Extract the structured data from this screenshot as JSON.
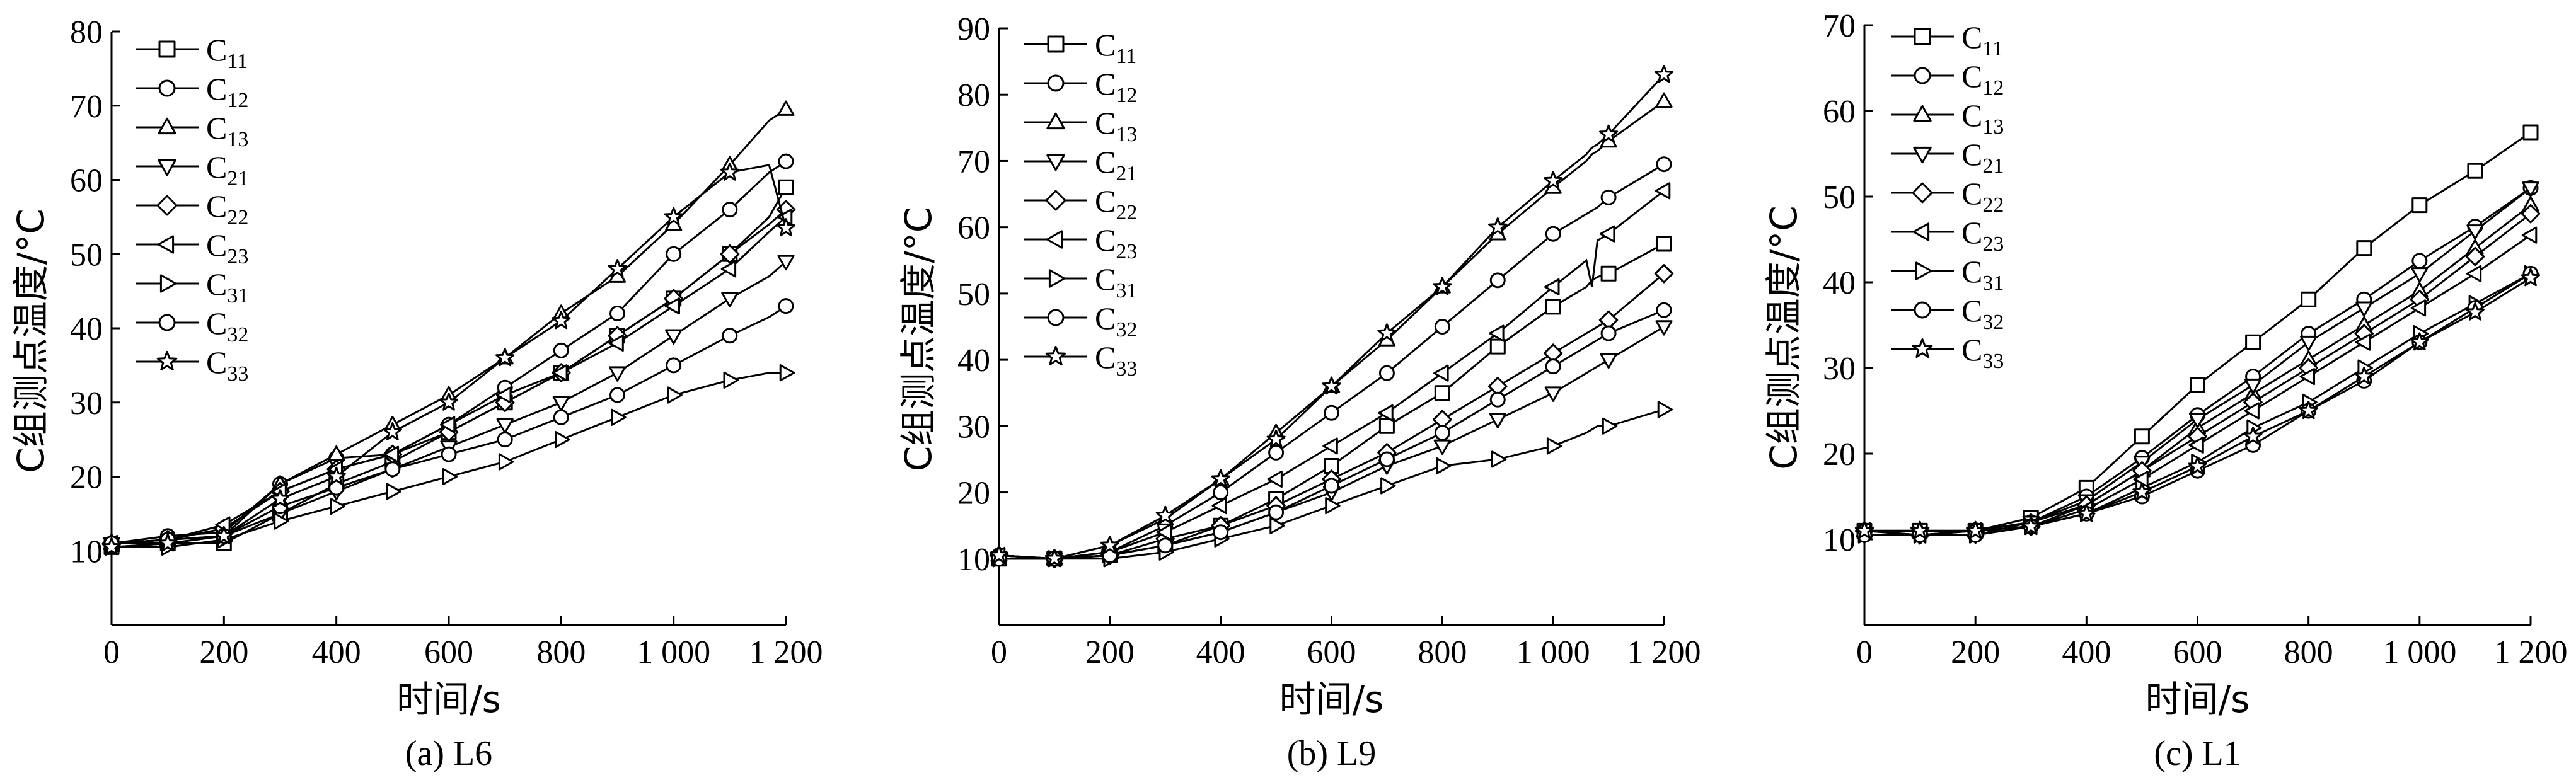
{
  "chart_data": [
    {
      "type": "line",
      "caption": "(a) L6",
      "xlabel": "时间/s",
      "ylabel": "C组测点温度/°C",
      "xlim": [
        0,
        1200
      ],
      "ylim": [
        0,
        80
      ],
      "xticks": [
        0,
        200,
        400,
        600,
        800,
        1000,
        1200
      ],
      "xtick_labels": [
        "0",
        "200",
        "400",
        "600",
        "800",
        "1 000",
        "1 200"
      ],
      "yticks": [
        10,
        20,
        30,
        40,
        50,
        60,
        70,
        80
      ],
      "grid": false,
      "legend_position": "top-left",
      "x": [
        0,
        100,
        200,
        300,
        400,
        500,
        600,
        700,
        800,
        900,
        1000,
        1100,
        1170,
        1200
      ],
      "series": [
        {
          "name": "C11",
          "marker": "square",
          "values": [
            10.5,
            11,
            11,
            15,
            19,
            22,
            26,
            30,
            34,
            39,
            44,
            50,
            55,
            59
          ]
        },
        {
          "name": "C12",
          "marker": "circle",
          "values": [
            11,
            12,
            12.5,
            19,
            22.5,
            23,
            27,
            32,
            37,
            42,
            50,
            56,
            61,
            62.5
          ]
        },
        {
          "name": "C13",
          "marker": "triangle-up",
          "values": [
            11,
            11.5,
            12,
            19,
            23,
            27,
            31,
            36,
            42,
            47,
            54,
            62,
            68,
            69.5
          ]
        },
        {
          "name": "C21",
          "marker": "triangle-down",
          "values": [
            11,
            11,
            12,
            15,
            18,
            21,
            24,
            27,
            30,
            34,
            39,
            44,
            47,
            49
          ]
        },
        {
          "name": "C22",
          "marker": "diamond",
          "values": [
            11,
            11.5,
            13,
            18,
            21,
            23,
            26,
            30,
            34,
            39,
            44,
            50,
            54,
            56
          ]
        },
        {
          "name": "C23",
          "marker": "triangle-left",
          "values": [
            11,
            11.5,
            13.5,
            18,
            21,
            23,
            27,
            31,
            34,
            38,
            43,
            48,
            53,
            55
          ]
        },
        {
          "name": "C31",
          "marker": "triangle-right",
          "values": [
            10.5,
            10.5,
            11.5,
            14,
            16,
            18,
            20,
            22,
            25,
            28,
            31,
            33,
            34,
            34
          ]
        },
        {
          "name": "C32",
          "marker": "circle",
          "values": [
            11,
            11.5,
            12,
            16,
            18.5,
            21,
            23,
            25,
            28,
            31,
            35,
            39,
            41.5,
            43
          ]
        },
        {
          "name": "C33",
          "marker": "star",
          "values": [
            10.5,
            11,
            12,
            17,
            20,
            26,
            30,
            36,
            41,
            48,
            55,
            61,
            62,
            53.5
          ]
        }
      ]
    },
    {
      "type": "line",
      "caption": "(b) L9",
      "xlabel": "时间/s",
      "ylabel": "C组测点温度/°C",
      "xlim": [
        0,
        1200
      ],
      "ylim": [
        0,
        90
      ],
      "xticks": [
        0,
        200,
        400,
        600,
        800,
        1000,
        1200
      ],
      "xtick_labels": [
        "0",
        "200",
        "400",
        "600",
        "800",
        "1 000",
        "1 200"
      ],
      "yticks": [
        10,
        20,
        30,
        40,
        50,
        60,
        70,
        80,
        90
      ],
      "grid": false,
      "legend_position": "top-left",
      "x": [
        0,
        100,
        200,
        300,
        400,
        500,
        600,
        700,
        800,
        900,
        1000,
        1060,
        1070,
        1080,
        1100,
        1200
      ],
      "series": [
        {
          "name": "C11",
          "marker": "square",
          "values": [
            10,
            10,
            10.5,
            12,
            15,
            19,
            24,
            30,
            35,
            42,
            48,
            51,
            52,
            52.5,
            53,
            57.5
          ]
        },
        {
          "name": "C12",
          "marker": "circle",
          "values": [
            10.5,
            10,
            11,
            15,
            20,
            26,
            32,
            38,
            45,
            52,
            59,
            62,
            62.5,
            63,
            64.5,
            69.5
          ]
        },
        {
          "name": "C13",
          "marker": "triangle-up",
          "values": [
            10.5,
            10,
            12,
            16,
            22,
            29,
            36,
            43,
            51,
            59,
            66,
            70,
            71,
            71.5,
            73,
            79
          ]
        },
        {
          "name": "C21",
          "marker": "triangle-down",
          "values": [
            10,
            10,
            10.5,
            12,
            14,
            17,
            20,
            24,
            27,
            31,
            35,
            38,
            38.5,
            39,
            40,
            45
          ]
        },
        {
          "name": "C22",
          "marker": "diamond",
          "values": [
            10.5,
            10,
            10.5,
            13,
            15,
            18,
            22,
            26,
            31,
            36,
            41,
            44,
            44.5,
            45,
            46,
            53
          ]
        },
        {
          "name": "C23",
          "marker": "triangle-left",
          "values": [
            10.5,
            10,
            11,
            14,
            18,
            22,
            27,
            32,
            38,
            44,
            51,
            55,
            51,
            58,
            59,
            65.5
          ]
        },
        {
          "name": "C31",
          "marker": "triangle-right",
          "values": [
            10,
            10,
            10,
            11,
            13,
            15,
            18,
            21,
            24,
            25,
            27,
            29,
            29.5,
            30,
            30,
            32.5
          ]
        },
        {
          "name": "C32",
          "marker": "circle",
          "values": [
            10,
            10,
            10.5,
            12,
            14,
            17,
            21,
            25,
            29,
            34,
            39,
            42,
            42.5,
            43,
            44,
            47.5
          ]
        },
        {
          "name": "C33",
          "marker": "star",
          "values": [
            10.5,
            10,
            12,
            16.5,
            22,
            28,
            36,
            44,
            51,
            60,
            67,
            71,
            72,
            72.5,
            74,
            83
          ]
        }
      ]
    },
    {
      "type": "line",
      "caption": "(c) L1",
      "xlabel": "时间/s",
      "ylabel": "C组测点温度/°C",
      "xlim": [
        0,
        1200
      ],
      "ylim": [
        0,
        70
      ],
      "xticks": [
        0,
        200,
        400,
        600,
        800,
        1000,
        1200
      ],
      "xtick_labels": [
        "0",
        "200",
        "400",
        "600",
        "800",
        "1 000",
        "1 200"
      ],
      "yticks": [
        10,
        20,
        30,
        40,
        50,
        60,
        70
      ],
      "grid": false,
      "legend_position": "top-left",
      "x": [
        0,
        100,
        200,
        300,
        400,
        500,
        600,
        700,
        800,
        900,
        1000,
        1100,
        1200
      ],
      "series": [
        {
          "name": "C11",
          "marker": "square",
          "values": [
            11,
            11,
            11,
            12.5,
            16,
            22,
            28,
            33,
            38,
            44,
            49,
            53,
            57.5
          ]
        },
        {
          "name": "C12",
          "marker": "circle",
          "values": [
            11,
            10.5,
            11,
            12,
            15,
            19.5,
            24.5,
            29,
            34,
            38,
            42.5,
            46.5,
            51
          ]
        },
        {
          "name": "C13",
          "marker": "triangle-up",
          "values": [
            11,
            11,
            11,
            12,
            14,
            18,
            23,
            27,
            31,
            35,
            39,
            44,
            49
          ]
        },
        {
          "name": "C21",
          "marker": "triangle-down",
          "values": [
            10.5,
            10.5,
            10.5,
            12,
            14.5,
            19,
            24,
            28,
            33,
            37,
            41,
            46,
            51
          ]
        },
        {
          "name": "C22",
          "marker": "diamond",
          "values": [
            11,
            10.5,
            11,
            11.5,
            14,
            18,
            22,
            26,
            30,
            34,
            38,
            43,
            48
          ]
        },
        {
          "name": "C23",
          "marker": "triangle-left",
          "values": [
            11,
            10.5,
            11,
            11.5,
            13.5,
            17,
            21,
            25,
            29,
            33,
            37,
            41,
            45.5
          ]
        },
        {
          "name": "C31",
          "marker": "triangle-right",
          "values": [
            10.5,
            10.5,
            10.5,
            11.5,
            13,
            16,
            19,
            23,
            26,
            30,
            34,
            37.5,
            41
          ]
        },
        {
          "name": "C32",
          "marker": "circle",
          "values": [
            10.5,
            10.5,
            10.5,
            11.5,
            13,
            15,
            18,
            21,
            25,
            28.5,
            33,
            37,
            41
          ]
        },
        {
          "name": "C33",
          "marker": "star",
          "values": [
            11,
            11,
            11,
            11.5,
            13,
            15.5,
            18.5,
            22,
            25,
            29,
            33,
            36.5,
            40.5
          ]
        }
      ]
    }
  ]
}
